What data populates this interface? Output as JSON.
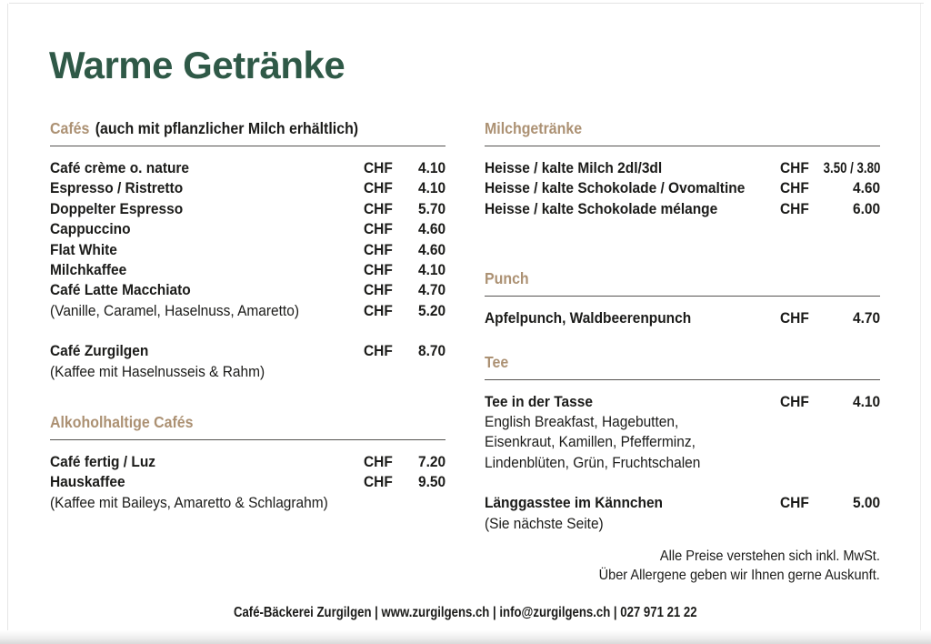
{
  "title": "Warme Getränke",
  "currency": "CHF",
  "colors": {
    "accent_green": "#2f5947",
    "accent_tan": "#ac9173",
    "text": "#1b1b19",
    "rule": "#555350"
  },
  "sections": {
    "cafes": {
      "heading": "Cafés",
      "heading_note": "(auch mit pflanzlicher Milch erhältlich)",
      "items": [
        {
          "name": "Café crème o. nature",
          "price": "4.10"
        },
        {
          "name": "Espresso / Ristretto",
          "price": "4.10"
        },
        {
          "name": "Doppelter Espresso",
          "price": "5.70"
        },
        {
          "name": "Cappuccino",
          "price": "4.60"
        },
        {
          "name": "Flat White",
          "price": "4.60"
        },
        {
          "name": "Milchkaffee",
          "price": "4.10"
        },
        {
          "name": "Café Latte Macchiato",
          "price": "4.70"
        },
        {
          "name": "(Vanille, Caramel, Haselnuss, Amaretto)",
          "price": "5.20"
        },
        {
          "name": "Café Zurgilgen",
          "price": "8.70"
        },
        {
          "name": "(Kaffee mit Haselnusseis & Rahm)"
        }
      ]
    },
    "alkoholhaltige": {
      "heading": "Alkoholhaltige Cafés",
      "items": [
        {
          "name": "Café fertig / Luz",
          "price": "7.20"
        },
        {
          "name": "Hauskaffee",
          "price": "9.50"
        },
        {
          "name": "(Kaffee mit Baileys, Amaretto & Schlagrahm)"
        }
      ]
    },
    "milchgetraenke": {
      "heading": "Milchgetränke",
      "items": [
        {
          "name": "Heisse / kalte Milch 2dl/3dl",
          "price": "3.50 / 3.80"
        },
        {
          "name": "Heisse / kalte Schokolade / Ovomaltine",
          "price": "4.60"
        },
        {
          "name": "Heisse / kalte Schokolade mélange",
          "price": "6.00"
        }
      ]
    },
    "punch": {
      "heading": "Punch",
      "items": [
        {
          "name": "Apfelpunch, Waldbeerenpunch",
          "price": "4.70"
        }
      ]
    },
    "tee": {
      "heading": "Tee",
      "items": [
        {
          "name": "Tee in der Tasse",
          "price": "4.10"
        },
        {
          "name": "English Breakfast, Hagebutten,"
        },
        {
          "name": "Eisenkraut, Kamillen, Pfefferminz,"
        },
        {
          "name": "Lindenblüten, Grün, Fruchtschalen"
        },
        {
          "name": "Länggasstee im Kännchen",
          "price": "5.00"
        },
        {
          "name": "(Sie nächste Seite)"
        }
      ]
    }
  },
  "notes": [
    "Alle Preise verstehen sich inkl. MwSt.",
    "Über Allergene geben wir Ihnen gerne Auskunft."
  ],
  "footer": "Café-Bäckerei Zurgilgen | www.zurgilgens.ch | info@zurgilgens.ch | 027 971 21 22"
}
